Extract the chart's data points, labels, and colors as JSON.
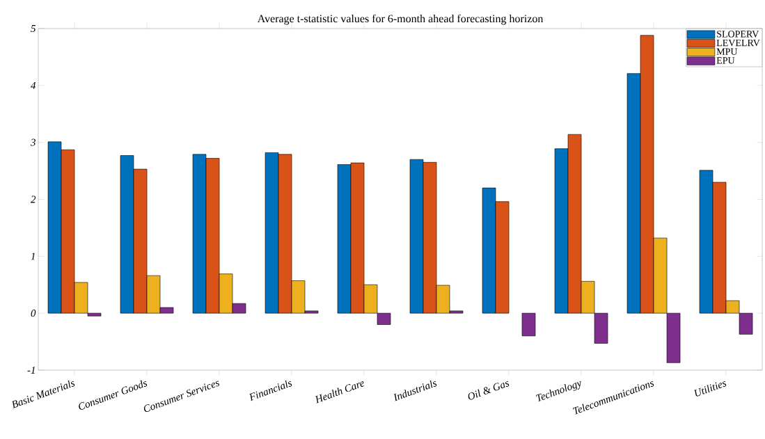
{
  "chart_data": {
    "type": "bar",
    "title": "Average t-statistic values for 6-month ahead forecasting horizon",
    "categories": [
      "Basic Materials",
      "Consumer Goods",
      "Consumer Services",
      "Financials",
      "Health Care",
      "Industrials",
      "Oil & Gas",
      "Technology",
      "Telecommunications",
      "Utilities"
    ],
    "series": [
      {
        "name": "SLOPERV",
        "color": "#0072bd",
        "values": [
          3.01,
          2.77,
          2.79,
          2.82,
          2.61,
          2.7,
          2.2,
          2.89,
          4.21,
          2.51
        ]
      },
      {
        "name": "LEVELRV",
        "color": "#d95319",
        "values": [
          2.87,
          2.53,
          2.72,
          2.79,
          2.64,
          2.65,
          1.96,
          3.14,
          4.88,
          2.3
        ]
      },
      {
        "name": "MPU",
        "color": "#edb120",
        "values": [
          0.54,
          0.66,
          0.69,
          0.57,
          0.5,
          0.49,
          null,
          0.56,
          1.32,
          0.22
        ]
      },
      {
        "name": "EPU",
        "color": "#7e2f8e",
        "values": [
          -0.05,
          0.1,
          0.17,
          0.04,
          -0.2,
          0.04,
          -0.4,
          -0.53,
          -0.87,
          -0.37
        ]
      }
    ],
    "ylim": [
      -1,
      5
    ],
    "yticks": [
      -1,
      0,
      1,
      2,
      3,
      4,
      5
    ],
    "legend": "top right"
  }
}
